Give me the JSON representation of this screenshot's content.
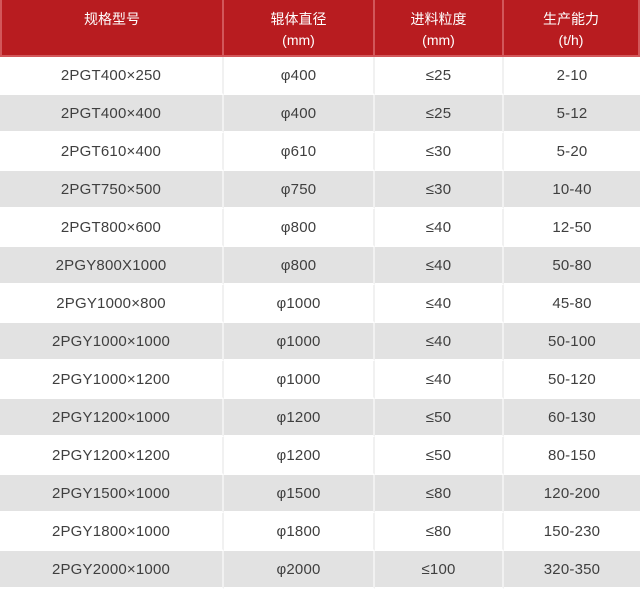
{
  "colors": {
    "header_bg": "#b81c20",
    "header_text": "#ffffff",
    "header_divider": "#d2575a",
    "row_bg": "#ffffff",
    "row_alt_bg": "#e2e2e2",
    "body_text": "#3f3f3f",
    "body_divider": "#f1f1f1"
  },
  "chart_data": {
    "type": "table",
    "columns": [
      {
        "line1": "规格型号",
        "line2": ""
      },
      {
        "line1": "辊体直径",
        "line2": "(mm)"
      },
      {
        "line1": "进料粒度",
        "line2": "(mm)"
      },
      {
        "line1": "生产能力",
        "line2": "(t/h)"
      }
    ],
    "rows": [
      [
        "2PGT400×250",
        "φ400",
        "≤25",
        "2-10"
      ],
      [
        "2PGT400×400",
        "φ400",
        "≤25",
        "5-12"
      ],
      [
        "2PGT610×400",
        "φ610",
        "≤30",
        "5-20"
      ],
      [
        "2PGT750×500",
        "φ750",
        "≤30",
        "10-40"
      ],
      [
        "2PGT800×600",
        "φ800",
        "≤40",
        "12-50"
      ],
      [
        "2PGY800X1000",
        "φ800",
        "≤40",
        "50-80"
      ],
      [
        "2PGY1000×800",
        "φ1000",
        "≤40",
        "45-80"
      ],
      [
        "2PGY1000×1000",
        "φ1000",
        "≤40",
        "50-100"
      ],
      [
        "2PGY1000×1200",
        "φ1000",
        "≤40",
        "50-120"
      ],
      [
        "2PGY1200×1000",
        "φ1200",
        "≤50",
        "60-130"
      ],
      [
        "2PGY1200×1200",
        "φ1200",
        "≤50",
        "80-150"
      ],
      [
        "2PGY1500×1000",
        "φ1500",
        "≤80",
        "120-200"
      ],
      [
        "2PGY1800×1000",
        "φ1800",
        "≤80",
        "150-230"
      ],
      [
        "2PGY2000×1000",
        "φ2000",
        "≤100",
        "320-350"
      ]
    ]
  }
}
